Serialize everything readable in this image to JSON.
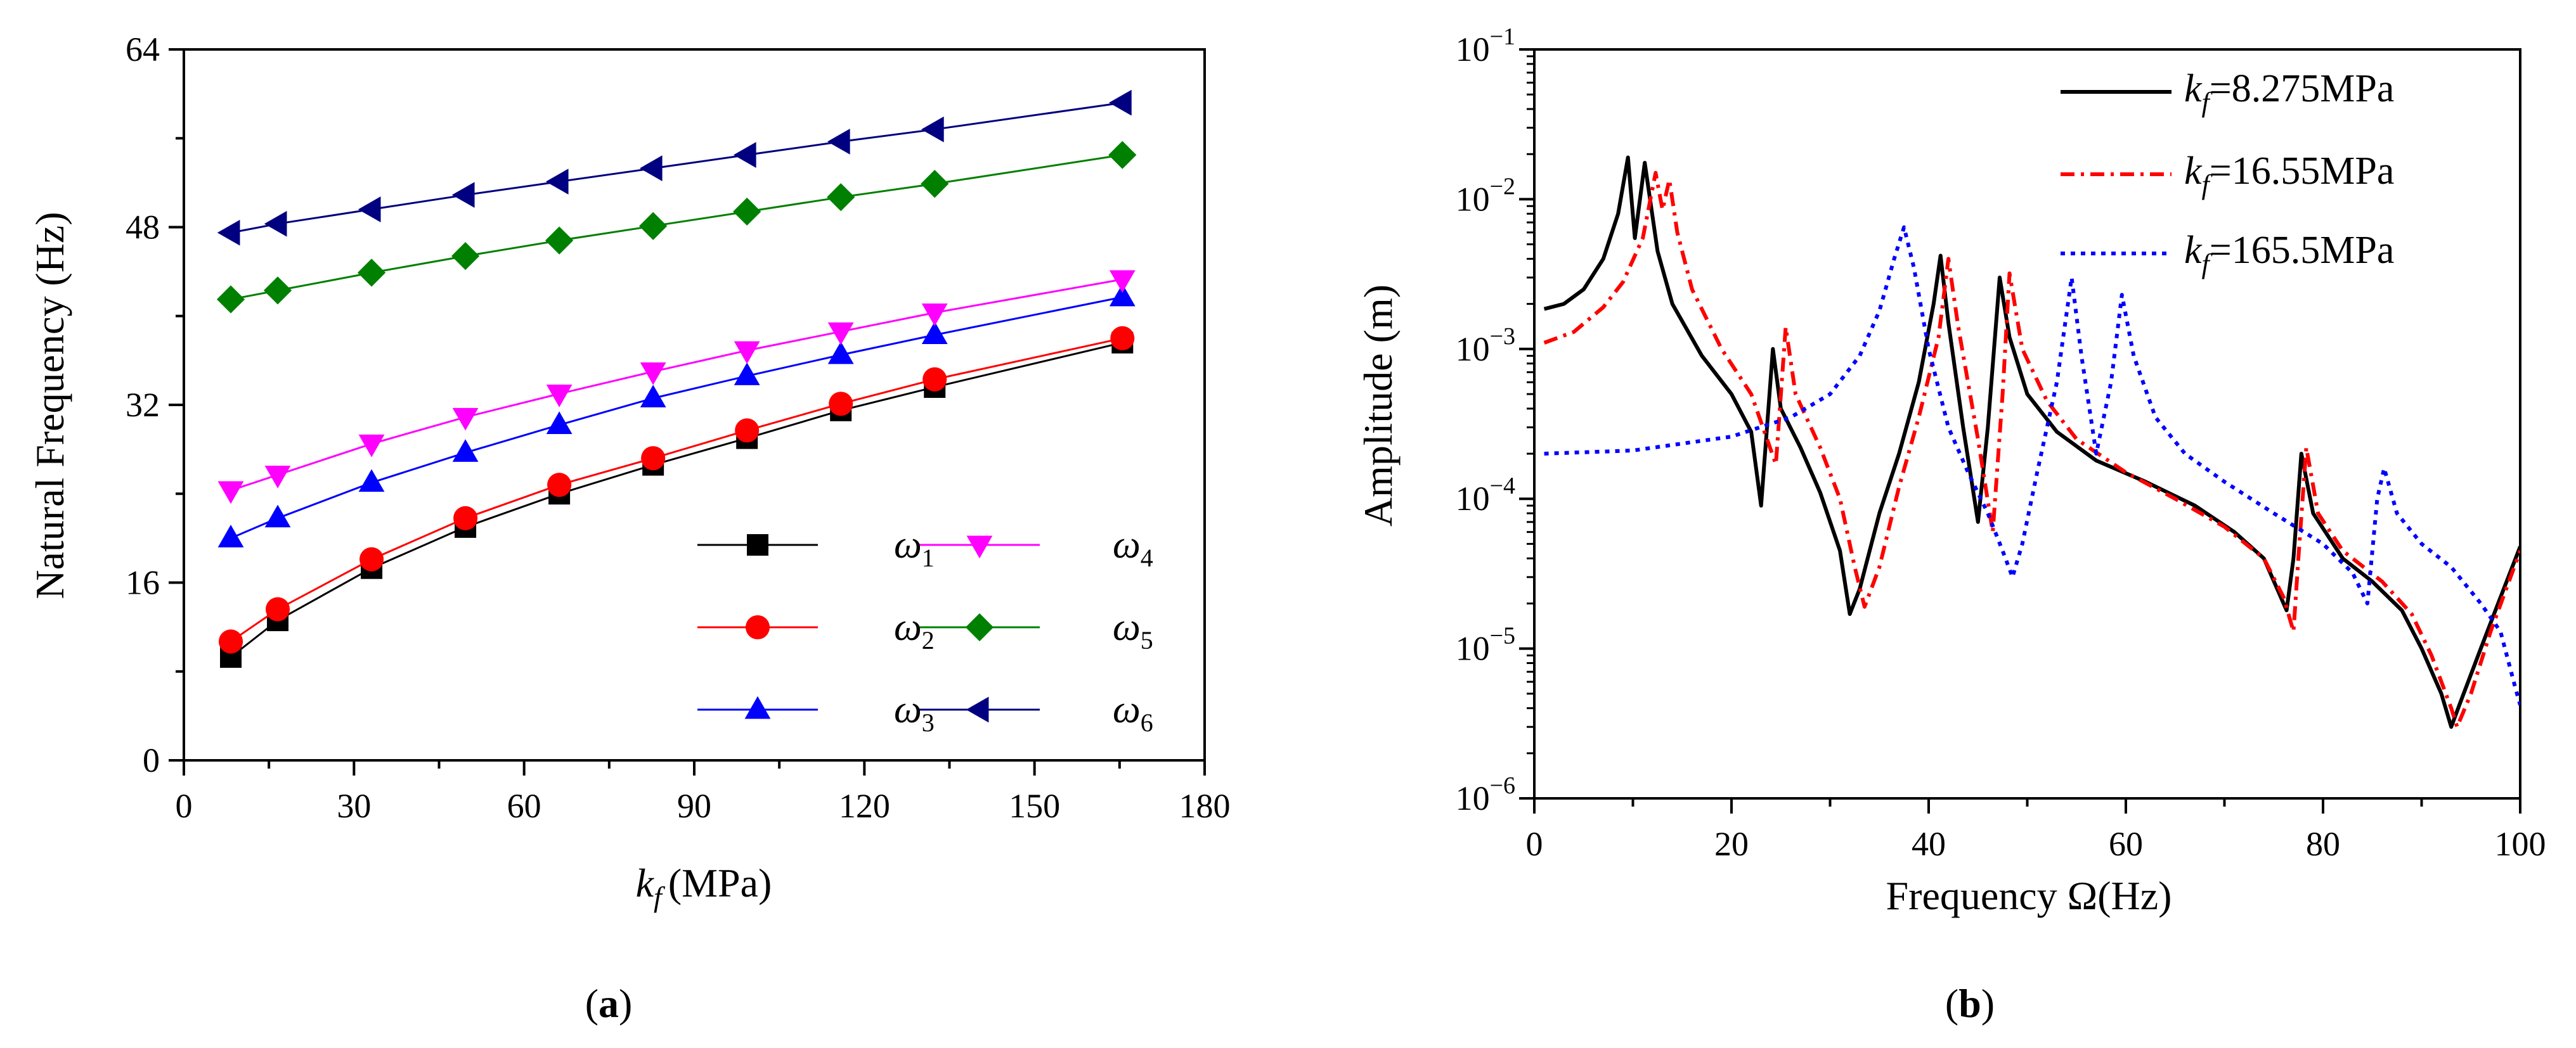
{
  "chart_data": [
    {
      "panel_label": "a",
      "type": "line",
      "title": "",
      "xlabel_symbol": "k",
      "xlabel_sub": "f",
      "xlabel_unit": "(MPa)",
      "ylabel": "Natural Frequency (Hz)",
      "xlim": [
        0,
        180
      ],
      "ylim": [
        0,
        64
      ],
      "x_ticks": [
        "0",
        "30",
        "60",
        "90",
        "120",
        "150",
        "180"
      ],
      "y_ticks": [
        "0",
        "16",
        "32",
        "48",
        "64"
      ],
      "x": [
        8.275,
        16.55,
        33.1,
        49.65,
        66.2,
        82.75,
        99.3,
        115.85,
        132.4,
        165.5
      ],
      "series": [
        {
          "name": "ω1",
          "symbol": "ω",
          "sub": "1",
          "color": "#000000",
          "marker": "square",
          "values": [
            9.3,
            12.6,
            17.3,
            21.0,
            24.0,
            26.6,
            29.0,
            31.5,
            33.6,
            37.6
          ]
        },
        {
          "name": "ω2",
          "symbol": "ω",
          "sub": "2",
          "color": "#ff0000",
          "marker": "circle",
          "values": [
            10.7,
            13.6,
            18.1,
            21.8,
            24.8,
            27.2,
            29.7,
            32.1,
            34.3,
            38.0
          ]
        },
        {
          "name": "ω3",
          "symbol": "ω",
          "sub": "3",
          "color": "#0000ff",
          "marker": "triangle-up",
          "values": [
            20.0,
            21.8,
            25.0,
            27.7,
            30.2,
            32.6,
            34.6,
            36.5,
            38.3,
            41.7
          ]
        },
        {
          "name": "ω4",
          "symbol": "ω",
          "sub": "4",
          "color": "#ff00ff",
          "marker": "triangle-down",
          "values": [
            24.3,
            25.7,
            28.5,
            30.9,
            33.0,
            35.0,
            36.9,
            38.6,
            40.3,
            43.3
          ]
        },
        {
          "name": "ω5",
          "symbol": "ω",
          "sub": "5",
          "color": "#008000",
          "marker": "diamond",
          "values": [
            41.5,
            42.3,
            43.9,
            45.4,
            46.8,
            48.1,
            49.4,
            50.7,
            51.9,
            54.5
          ]
        },
        {
          "name": "ω6",
          "symbol": "ω",
          "sub": "6",
          "color": "#000080",
          "marker": "triangle-left",
          "values": [
            47.5,
            48.3,
            49.6,
            50.9,
            52.1,
            53.3,
            54.5,
            55.7,
            56.8,
            59.2
          ]
        }
      ],
      "legend_position": "bottom-right, two columns"
    },
    {
      "panel_label": "b",
      "type": "line",
      "title": "",
      "xlabel": "Frequency Ω(Hz)",
      "ylabel": "Amplitude (m)",
      "yscale": "log",
      "xlim": [
        0,
        100
      ],
      "ylim_exponent": [
        -6,
        -1
      ],
      "x_ticks": [
        "0",
        "20",
        "40",
        "60",
        "80",
        "100"
      ],
      "y_tick_base": "10",
      "y_tick_exponents": [
        "−6",
        "−5",
        "−4",
        "−3",
        "−2",
        "−1"
      ],
      "series": [
        {
          "name": "kf=8.275MPa",
          "symbol": "k",
          "sub": "f",
          "label_value": "=8.275MPa",
          "color": "#000000",
          "line_style": "solid",
          "points": [
            [
              1,
              0.00185
            ],
            [
              3,
              0.002
            ],
            [
              5,
              0.0025
            ],
            [
              7,
              0.004
            ],
            [
              8.5,
              0.008
            ],
            [
              9.5,
              0.019
            ],
            [
              10.2,
              0.0055
            ],
            [
              11.2,
              0.0175
            ],
            [
              12.5,
              0.0045
            ],
            [
              14,
              0.002
            ],
            [
              17,
              0.0009
            ],
            [
              20,
              0.0005
            ],
            [
              22,
              0.00028
            ],
            [
              23,
              9e-05
            ],
            [
              24.2,
              0.001
            ],
            [
              25,
              0.0004
            ],
            [
              27,
              0.00022
            ],
            [
              29,
              0.00011
            ],
            [
              31,
              4.5e-05
            ],
            [
              32,
              1.7e-05
            ],
            [
              33,
              2.5e-05
            ],
            [
              35,
              8e-05
            ],
            [
              37,
              0.0002
            ],
            [
              39,
              0.0006
            ],
            [
              40.5,
              0.002
            ],
            [
              41.2,
              0.0042
            ],
            [
              42,
              0.0015
            ],
            [
              43.5,
              0.0003
            ],
            [
              45,
              7e-05
            ],
            [
              46,
              0.0003
            ],
            [
              47.2,
              0.003
            ],
            [
              48.2,
              0.0012
            ],
            [
              50,
              0.0005
            ],
            [
              53,
              0.00028
            ],
            [
              57,
              0.00018
            ],
            [
              62,
              0.00013
            ],
            [
              67,
              9e-05
            ],
            [
              71,
              6e-05
            ],
            [
              74,
              4e-05
            ],
            [
              76.3,
              1.8e-05
            ],
            [
              77,
              4e-05
            ],
            [
              77.8,
              0.0002
            ],
            [
              79,
              8e-05
            ],
            [
              82,
              4e-05
            ],
            [
              85,
              2.8e-05
            ],
            [
              88,
              1.8e-05
            ],
            [
              90,
              1e-05
            ],
            [
              92,
              5e-06
            ],
            [
              93,
              3e-06
            ],
            [
              94,
              4.5e-06
            ],
            [
              96,
              1e-05
            ],
            [
              98,
              2.2e-05
            ],
            [
              100,
              4.8e-05
            ]
          ]
        },
        {
          "name": "kf=16.55MPa",
          "symbol": "k",
          "sub": "f",
          "label_value": "=16.55MPa",
          "color": "#ff0000",
          "line_style": "dash-dot",
          "points": [
            [
              1,
              0.0011
            ],
            [
              4,
              0.0013
            ],
            [
              7,
              0.0019
            ],
            [
              9,
              0.0028
            ],
            [
              11,
              0.0055
            ],
            [
              12.3,
              0.015
            ],
            [
              13,
              0.0085
            ],
            [
              13.7,
              0.0135
            ],
            [
              14.5,
              0.006
            ],
            [
              16,
              0.0025
            ],
            [
              19,
              0.001
            ],
            [
              22,
              0.0005
            ],
            [
              24.5,
              0.00017
            ],
            [
              25.5,
              0.0014
            ],
            [
              26.5,
              0.0005
            ],
            [
              29,
              0.00022
            ],
            [
              31,
              0.0001
            ],
            [
              32.5,
              3.5e-05
            ],
            [
              33.5,
              1.9e-05
            ],
            [
              35,
              3.5e-05
            ],
            [
              37,
              0.00012
            ],
            [
              39,
              0.00035
            ],
            [
              41,
              0.0012
            ],
            [
              42,
              0.004
            ],
            [
              43,
              0.0014
            ],
            [
              45,
              0.00025
            ],
            [
              46.5,
              6e-05
            ],
            [
              47.5,
              0.0005
            ],
            [
              48.2,
              0.0032
            ],
            [
              49.5,
              0.001
            ],
            [
              52,
              0.00045
            ],
            [
              55,
              0.00025
            ],
            [
              60,
              0.00015
            ],
            [
              65,
              0.0001
            ],
            [
              70,
              6.5e-05
            ],
            [
              74,
              4e-05
            ],
            [
              76,
              2.2e-05
            ],
            [
              77,
              1.3e-05
            ],
            [
              77.5,
              4e-05
            ],
            [
              78.3,
              0.00022
            ],
            [
              79.5,
              8e-05
            ],
            [
              82,
              4.5e-05
            ],
            [
              86,
              2.8e-05
            ],
            [
              89,
              1.7e-05
            ],
            [
              91,
              9e-06
            ],
            [
              93,
              4e-06
            ],
            [
              93.6,
              3e-06
            ],
            [
              95,
              5e-06
            ],
            [
              97,
              1.3e-05
            ],
            [
              100,
              4.5e-05
            ]
          ]
        },
        {
          "name": "kf=165.5MPa",
          "symbol": "k",
          "sub": "f",
          "label_value": "=165.5MPa",
          "color": "#0000ff",
          "line_style": "dotted",
          "points": [
            [
              1,
              0.0002
            ],
            [
              10,
              0.00021
            ],
            [
              20,
              0.00026
            ],
            [
              26,
              0.00035
            ],
            [
              30,
              0.0005
            ],
            [
              33,
              0.0009
            ],
            [
              35,
              0.0018
            ],
            [
              36.5,
              0.004
            ],
            [
              37.5,
              0.0065
            ],
            [
              38.5,
              0.0035
            ],
            [
              40,
              0.001
            ],
            [
              42,
              0.0003
            ],
            [
              44,
              0.00015
            ],
            [
              46,
              8e-05
            ],
            [
              47.5,
              4.5e-05
            ],
            [
              48.5,
              3e-05
            ],
            [
              49.5,
              5e-05
            ],
            [
              51,
              0.00015
            ],
            [
              53,
              0.0006
            ],
            [
              54.5,
              0.003
            ],
            [
              55.5,
              0.0009
            ],
            [
              57,
              0.0002
            ],
            [
              58.5,
              0.0006
            ],
            [
              59.6,
              0.0023
            ],
            [
              60.8,
              0.0009
            ],
            [
              63,
              0.00035
            ],
            [
              66,
              0.0002
            ],
            [
              70,
              0.00013
            ],
            [
              75,
              8e-05
            ],
            [
              80,
              5e-05
            ],
            [
              83,
              3.2e-05
            ],
            [
              84.5,
              2e-05
            ],
            [
              85.5,
              0.0001
            ],
            [
              86.2,
              0.00016
            ],
            [
              87.5,
              8e-05
            ],
            [
              90,
              5e-05
            ],
            [
              93,
              3.5e-05
            ],
            [
              96,
              2e-05
            ],
            [
              98,
              1.3e-05
            ],
            [
              99.5,
              5.5e-06
            ],
            [
              100,
              4.2e-06
            ]
          ]
        }
      ],
      "legend_position": "top-right"
    }
  ]
}
